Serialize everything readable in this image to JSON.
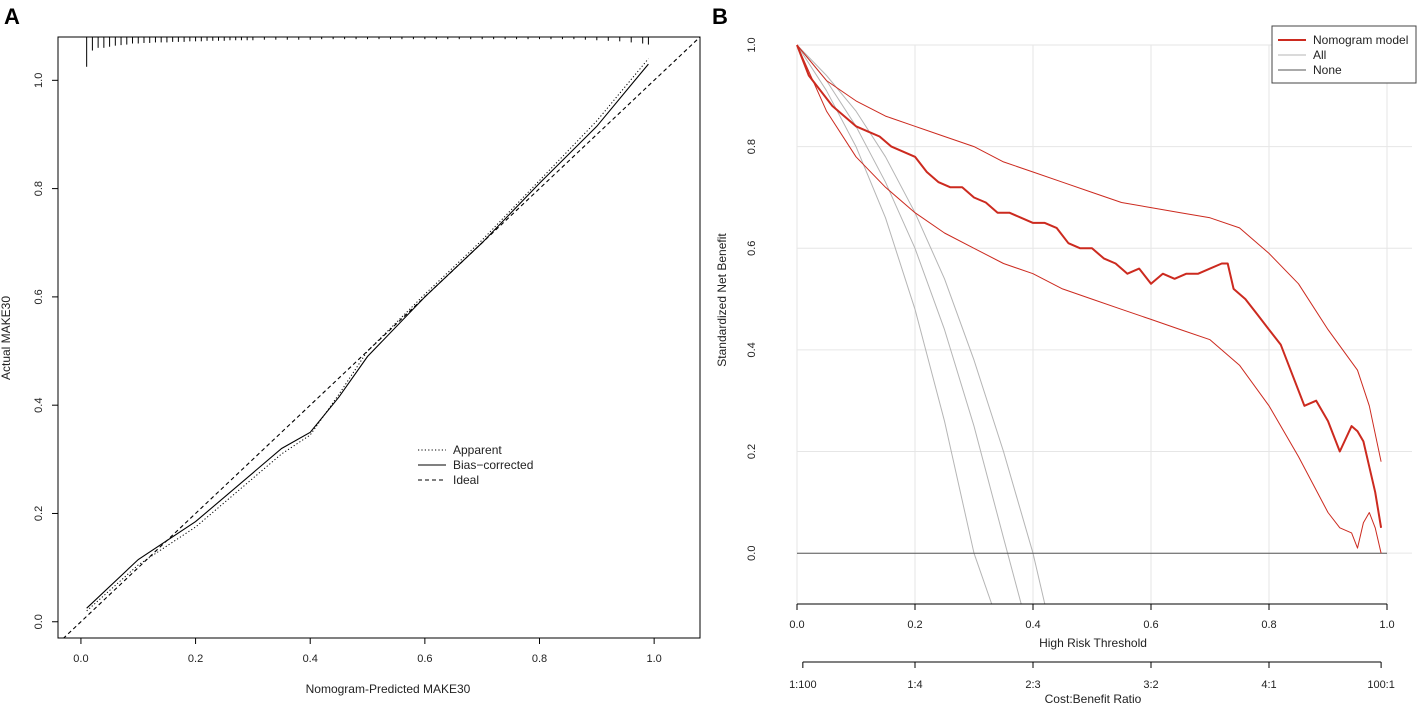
{
  "chart_data": [
    {
      "panel": "A",
      "type": "line",
      "title": "",
      "xlabel": "Nomogram-Predicted MAKE30",
      "ylabel": "Actual MAKE30",
      "xlim": [
        -0.04,
        1.08
      ],
      "ylim": [
        -0.03,
        1.08
      ],
      "xticks": [
        0.0,
        0.2,
        0.4,
        0.6,
        0.8,
        1.0
      ],
      "xtick_labels": [
        "0.0",
        "0.2",
        "0.4",
        "0.6",
        "0.8",
        "1.0"
      ],
      "yticks": [
        0.0,
        0.2,
        0.4,
        0.6,
        0.8,
        1.0
      ],
      "ytick_labels": [
        "0.0",
        "0.2",
        "0.4",
        "0.6",
        "0.8",
        "1.0"
      ],
      "legend": {
        "position": "center-right",
        "entries": [
          {
            "label": "Apparent",
            "style": "dotted"
          },
          {
            "label": "Bias−corrected",
            "style": "solid"
          },
          {
            "label": "Ideal",
            "style": "dashed"
          }
        ]
      },
      "series": [
        {
          "name": "Apparent",
          "style": "dotted",
          "x": [
            0.01,
            0.1,
            0.2,
            0.3,
            0.35,
            0.4,
            0.45,
            0.5,
            0.6,
            0.7,
            0.8,
            0.9,
            0.99
          ],
          "y": [
            0.02,
            0.105,
            0.175,
            0.265,
            0.31,
            0.345,
            0.42,
            0.5,
            0.605,
            0.705,
            0.815,
            0.925,
            1.04
          ]
        },
        {
          "name": "Bias−corrected",
          "style": "solid",
          "x": [
            0.01,
            0.1,
            0.2,
            0.3,
            0.35,
            0.4,
            0.45,
            0.5,
            0.6,
            0.7,
            0.8,
            0.9,
            0.99
          ],
          "y": [
            0.025,
            0.115,
            0.185,
            0.275,
            0.32,
            0.35,
            0.415,
            0.49,
            0.6,
            0.7,
            0.81,
            0.915,
            1.03
          ]
        },
        {
          "name": "Ideal",
          "style": "dashed",
          "x": [
            -0.04,
            1.08
          ],
          "y": [
            -0.04,
            1.08
          ]
        }
      ],
      "rug_x": [
        0.01,
        0.02,
        0.03,
        0.04,
        0.05,
        0.06,
        0.07,
        0.08,
        0.09,
        0.1,
        0.11,
        0.12,
        0.13,
        0.14,
        0.15,
        0.16,
        0.17,
        0.18,
        0.19,
        0.2,
        0.21,
        0.22,
        0.23,
        0.24,
        0.25,
        0.26,
        0.27,
        0.28,
        0.29,
        0.3,
        0.32,
        0.34,
        0.36,
        0.38,
        0.4,
        0.42,
        0.44,
        0.46,
        0.48,
        0.5,
        0.52,
        0.54,
        0.56,
        0.58,
        0.6,
        0.62,
        0.64,
        0.66,
        0.68,
        0.7,
        0.72,
        0.74,
        0.76,
        0.78,
        0.8,
        0.82,
        0.84,
        0.86,
        0.88,
        0.9,
        0.92,
        0.94,
        0.96,
        0.98,
        0.99
      ],
      "rug_heights": [
        0.055,
        0.025,
        0.02,
        0.02,
        0.018,
        0.016,
        0.015,
        0.014,
        0.012,
        0.012,
        0.011,
        0.011,
        0.01,
        0.01,
        0.01,
        0.009,
        0.009,
        0.009,
        0.008,
        0.008,
        0.008,
        0.007,
        0.007,
        0.007,
        0.007,
        0.006,
        0.006,
        0.006,
        0.006,
        0.006,
        0.005,
        0.005,
        0.005,
        0.005,
        0.005,
        0.004,
        0.004,
        0.004,
        0.004,
        0.004,
        0.004,
        0.004,
        0.004,
        0.004,
        0.004,
        0.004,
        0.004,
        0.004,
        0.004,
        0.004,
        0.004,
        0.004,
        0.004,
        0.004,
        0.004,
        0.004,
        0.004,
        0.004,
        0.005,
        0.006,
        0.007,
        0.008,
        0.01,
        0.012,
        0.014
      ]
    },
    {
      "panel": "B",
      "type": "line",
      "title": "",
      "xlabel": "High Risk Threshold",
      "ylabel": "Standardized Net Benefit",
      "xlim": [
        0.0,
        1.0
      ],
      "ylim": [
        -0.1,
        1.0
      ],
      "grid": true,
      "xticks": [
        0.0,
        0.2,
        0.4,
        0.6,
        0.8,
        1.0
      ],
      "xtick_labels": [
        "0.0",
        "0.2",
        "0.4",
        "0.6",
        "0.8",
        "1.0"
      ],
      "yticks": [
        0.0,
        0.2,
        0.4,
        0.6,
        0.8,
        1.0
      ],
      "ytick_labels": [
        "0.0",
        "0.2",
        "0.4",
        "0.6",
        "0.8",
        "1.0"
      ],
      "secondary_xaxis": {
        "label": "Cost:Benefit Ratio",
        "ticks": [
          0.0099,
          0.2,
          0.4,
          0.6,
          0.8,
          0.99
        ],
        "tick_labels": [
          "1:100",
          "1:4",
          "2:3",
          "3:2",
          "4:1",
          "100:1"
        ]
      },
      "legend": {
        "position": "top-right",
        "entries": [
          {
            "label": "Nomogram model",
            "color": "#cc2a1f"
          },
          {
            "label": "All",
            "color": "#b5b5b5"
          },
          {
            "label": "None",
            "color": "#555555"
          }
        ]
      },
      "series": [
        {
          "name": "Nomogram model",
          "color": "#cc2a1f",
          "width": 2,
          "x": [
            0.0,
            0.02,
            0.04,
            0.06,
            0.08,
            0.1,
            0.12,
            0.14,
            0.16,
            0.18,
            0.2,
            0.22,
            0.24,
            0.26,
            0.28,
            0.3,
            0.32,
            0.34,
            0.36,
            0.38,
            0.4,
            0.42,
            0.44,
            0.46,
            0.48,
            0.5,
            0.52,
            0.54,
            0.56,
            0.58,
            0.6,
            0.62,
            0.64,
            0.66,
            0.68,
            0.7,
            0.72,
            0.73,
            0.74,
            0.76,
            0.78,
            0.8,
            0.82,
            0.84,
            0.86,
            0.88,
            0.9,
            0.92,
            0.94,
            0.95,
            0.96,
            0.97,
            0.98,
            0.99
          ],
          "y": [
            1.0,
            0.94,
            0.91,
            0.88,
            0.86,
            0.84,
            0.83,
            0.82,
            0.8,
            0.79,
            0.78,
            0.75,
            0.73,
            0.72,
            0.72,
            0.7,
            0.69,
            0.67,
            0.67,
            0.66,
            0.65,
            0.65,
            0.64,
            0.61,
            0.6,
            0.6,
            0.58,
            0.57,
            0.55,
            0.56,
            0.53,
            0.55,
            0.54,
            0.55,
            0.55,
            0.56,
            0.57,
            0.57,
            0.52,
            0.5,
            0.47,
            0.44,
            0.41,
            0.35,
            0.29,
            0.3,
            0.26,
            0.2,
            0.25,
            0.24,
            0.22,
            0.17,
            0.12,
            0.05
          ]
        },
        {
          "name": "Nomogram model upper",
          "color": "#cc2a1f",
          "width": 1,
          "x": [
            0.0,
            0.05,
            0.1,
            0.15,
            0.2,
            0.25,
            0.3,
            0.35,
            0.4,
            0.45,
            0.5,
            0.55,
            0.6,
            0.65,
            0.7,
            0.75,
            0.8,
            0.85,
            0.9,
            0.95,
            0.97,
            0.99
          ],
          "y": [
            1.0,
            0.93,
            0.89,
            0.86,
            0.84,
            0.82,
            0.8,
            0.77,
            0.75,
            0.73,
            0.71,
            0.69,
            0.68,
            0.67,
            0.66,
            0.64,
            0.59,
            0.53,
            0.44,
            0.36,
            0.29,
            0.18
          ]
        },
        {
          "name": "Nomogram model lower",
          "color": "#cc2a1f",
          "width": 1,
          "x": [
            0.0,
            0.05,
            0.1,
            0.15,
            0.2,
            0.25,
            0.3,
            0.35,
            0.4,
            0.45,
            0.5,
            0.55,
            0.6,
            0.65,
            0.7,
            0.75,
            0.8,
            0.85,
            0.9,
            0.92,
            0.94,
            0.95,
            0.96,
            0.97,
            0.98,
            0.99
          ],
          "y": [
            1.0,
            0.87,
            0.78,
            0.72,
            0.67,
            0.63,
            0.6,
            0.57,
            0.55,
            0.52,
            0.5,
            0.48,
            0.46,
            0.44,
            0.42,
            0.37,
            0.29,
            0.19,
            0.08,
            0.05,
            0.04,
            0.01,
            0.06,
            0.08,
            0.05,
            0.0
          ]
        },
        {
          "name": "All",
          "color": "#b5b5b5",
          "width": 1,
          "x": [
            0.0,
            0.05,
            0.1,
            0.15,
            0.2,
            0.25,
            0.3,
            0.33
          ],
          "y": [
            1.0,
            0.91,
            0.8,
            0.66,
            0.48,
            0.26,
            0.0,
            -0.1
          ]
        },
        {
          "name": "All (lower bound)",
          "color": "#b5b5b5",
          "width": 1,
          "x": [
            0.0,
            0.05,
            0.1,
            0.15,
            0.2,
            0.25,
            0.3,
            0.35,
            0.38
          ],
          "y": [
            1.0,
            0.93,
            0.84,
            0.73,
            0.6,
            0.44,
            0.25,
            0.03,
            -0.1
          ]
        },
        {
          "name": "All (upper bound)",
          "color": "#b5b5b5",
          "width": 1,
          "x": [
            0.0,
            0.05,
            0.1,
            0.15,
            0.2,
            0.25,
            0.3,
            0.35,
            0.4,
            0.42
          ],
          "y": [
            1.0,
            0.94,
            0.87,
            0.78,
            0.67,
            0.54,
            0.38,
            0.2,
            0.0,
            -0.1
          ]
        },
        {
          "name": "None",
          "color": "#555555",
          "width": 1,
          "x": [
            0.0,
            1.0
          ],
          "y": [
            0.0,
            0.0
          ]
        }
      ]
    }
  ],
  "panels": {
    "a_label": "A",
    "b_label": "B"
  }
}
